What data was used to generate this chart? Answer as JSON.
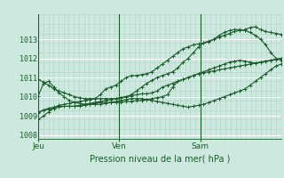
{
  "bg_color": "#cce8df",
  "grid_color_major": "#ffffff",
  "grid_color_minor": "#b0d4c8",
  "line_color": "#1a5c2a",
  "title": "Pression niveau de la mer( hPa )",
  "ylim": [
    1007.8,
    1014.2
  ],
  "yticks": [
    1008,
    1009,
    1010,
    1011,
    1012,
    1013
  ],
  "day_labels": [
    "Jeu",
    "Ven",
    "Sam"
  ],
  "day_positions": [
    0.0,
    0.333,
    0.667
  ],
  "total_hours": 48,
  "series": [
    [
      1008.8,
      1009.0,
      1009.2,
      1009.4,
      1009.55,
      1009.6,
      1009.65,
      1009.7,
      1009.75,
      1009.8,
      1009.85,
      1009.9,
      1010.1,
      1010.4,
      1010.5,
      1010.6,
      1010.8,
      1011.0,
      1011.1,
      1011.1,
      1011.15,
      1011.2,
      1011.3,
      1011.5,
      1011.7,
      1011.9,
      1012.1,
      1012.3,
      1012.5,
      1012.6,
      1012.7,
      1012.75,
      1012.8,
      1012.85,
      1013.0,
      1013.2,
      1013.35,
      1013.45,
      1013.5,
      1013.5,
      1013.45,
      1013.35,
      1013.2,
      1013.0,
      1012.7,
      1012.3,
      1012.0,
      1011.9
    ],
    [
      1009.15,
      1009.3,
      1009.4,
      1009.45,
      1009.5,
      1009.5,
      1009.5,
      1009.5,
      1009.55,
      1009.6,
      1009.65,
      1009.7,
      1009.75,
      1009.8,
      1009.85,
      1009.9,
      1009.95,
      1010.0,
      1010.05,
      1010.1,
      1010.15,
      1010.15,
      1010.2,
      1010.3,
      1010.5,
      1010.6,
      1010.7,
      1010.8,
      1010.9,
      1011.0,
      1011.1,
      1011.2,
      1011.3,
      1011.4,
      1011.5,
      1011.6,
      1011.7,
      1011.8,
      1011.85,
      1011.9,
      1011.85,
      1011.8,
      1011.75,
      1011.8,
      1011.85,
      1011.9,
      1011.95,
      1012.0
    ],
    [
      1009.2,
      1009.3,
      1009.35,
      1009.4,
      1009.45,
      1009.5,
      1009.5,
      1009.5,
      1009.5,
      1009.55,
      1009.6,
      1009.65,
      1009.7,
      1009.7,
      1009.7,
      1009.75,
      1009.8,
      1009.85,
      1009.9,
      1009.9,
      1009.9,
      1009.85,
      1009.8,
      1009.75,
      1009.7,
      1009.65,
      1009.6,
      1009.55,
      1009.5,
      1009.45,
      1009.5,
      1009.55,
      1009.6,
      1009.7,
      1009.8,
      1009.9,
      1010.0,
      1010.1,
      1010.2,
      1010.3,
      1010.4,
      1010.6,
      1010.8,
      1011.0,
      1011.2,
      1011.4,
      1011.6,
      1011.7
    ],
    [
      1010.05,
      1010.7,
      1010.8,
      1010.5,
      1010.2,
      1010.0,
      1009.8,
      1009.7,
      1009.65,
      1009.6,
      1009.6,
      1009.6,
      1009.6,
      1009.65,
      1009.7,
      1009.7,
      1009.7,
      1009.75,
      1009.75,
      1009.8,
      1009.8,
      1009.85,
      1009.9,
      1009.95,
      1010.0,
      1010.1,
      1010.5,
      1010.8,
      1010.9,
      1011.0,
      1011.1,
      1011.2,
      1011.25,
      1011.3,
      1011.35,
      1011.4,
      1011.45,
      1011.5,
      1011.55,
      1011.6,
      1011.65,
      1011.7,
      1011.75,
      1011.8,
      1011.85,
      1011.9,
      1011.95,
      1012.0
    ],
    [
      1010.9,
      1010.75,
      1010.6,
      1010.4,
      1010.3,
      1010.2,
      1010.1,
      1010.0,
      1009.95,
      1009.9,
      1009.9,
      1009.9,
      1009.9,
      1009.9,
      1009.9,
      1009.9,
      1009.95,
      1010.0,
      1010.1,
      1010.3,
      1010.5,
      1010.7,
      1010.85,
      1011.0,
      1011.1,
      1011.2,
      1011.3,
      1011.5,
      1011.8,
      1012.0,
      1012.3,
      1012.6,
      1012.8,
      1012.9,
      1013.0,
      1013.1,
      1013.2,
      1013.3,
      1013.4,
      1013.45,
      1013.5,
      1013.6,
      1013.65,
      1013.5,
      1013.4,
      1013.35,
      1013.3,
      1013.25
    ]
  ]
}
